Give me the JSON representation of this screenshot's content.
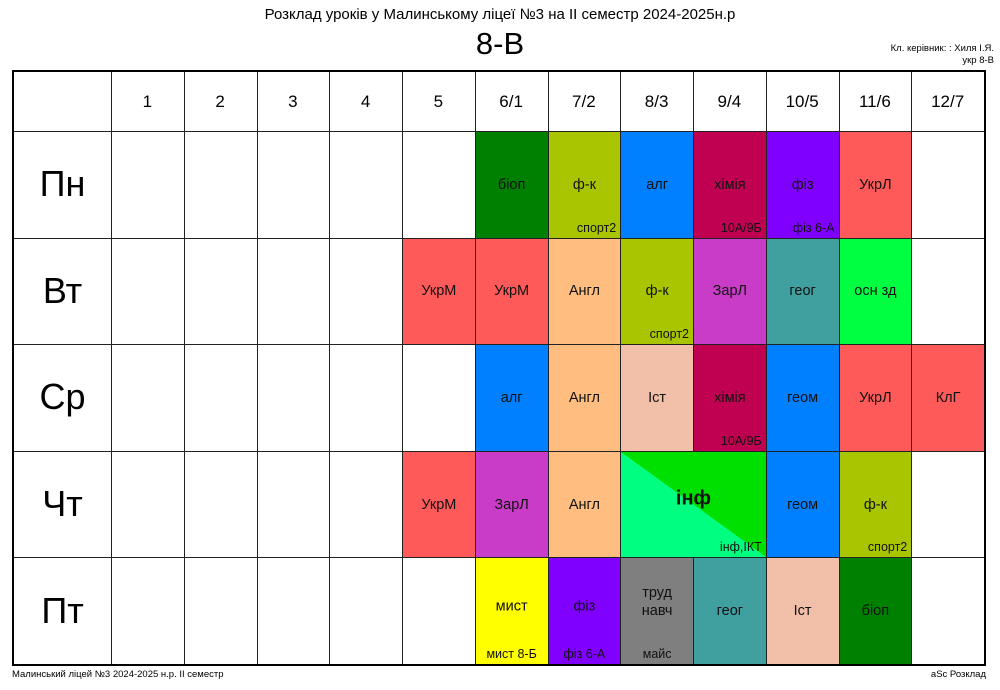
{
  "header": {
    "title": "Розклад уроків у Малинському ліцеї №3 на ІІ семестр 2024-2025н.р",
    "class_name": "8-В",
    "teacher_line": "Кл. керівник: : Хиля І.Я.",
    "room_line": "укр 8-В"
  },
  "periods": [
    "1",
    "2",
    "3",
    "4",
    "5",
    "6/1",
    "7/2",
    "8/3",
    "9/4",
    "10/5",
    "11/6",
    "12/7"
  ],
  "days": [
    "Пн",
    "Вт",
    "Ср",
    "Чт",
    "Пт"
  ],
  "lessons": [
    {
      "day": 0,
      "period": 5,
      "subject": "біоп",
      "sub": "",
      "color": "#008000"
    },
    {
      "day": 0,
      "period": 6,
      "subject": "ф-к",
      "sub": "спорт2",
      "color": "#a9c400"
    },
    {
      "day": 0,
      "period": 7,
      "subject": "алг",
      "sub": "",
      "color": "#0080ff"
    },
    {
      "day": 0,
      "period": 8,
      "subject": "хімія",
      "sub": "10А/9Б",
      "color": "#c00050"
    },
    {
      "day": 0,
      "period": 9,
      "subject": "фіз",
      "sub": "фіз 6-А",
      "color": "#8000ff"
    },
    {
      "day": 0,
      "period": 10,
      "subject": "УкрЛ",
      "sub": "",
      "color": "#ff5a5a"
    },
    {
      "day": 1,
      "period": 4,
      "subject": "УкрМ",
      "sub": "",
      "color": "#ff5a5a"
    },
    {
      "day": 1,
      "period": 5,
      "subject": "УкрМ",
      "sub": "",
      "color": "#ff5a5a"
    },
    {
      "day": 1,
      "period": 6,
      "subject": "Англ",
      "sub": "",
      "color": "#ffbe80"
    },
    {
      "day": 1,
      "period": 7,
      "subject": "ф-к",
      "sub": "спорт2",
      "color": "#a9c400"
    },
    {
      "day": 1,
      "period": 8,
      "subject": "ЗарЛ",
      "sub": "",
      "color": "#c83cc8"
    },
    {
      "day": 1,
      "period": 9,
      "subject": "геог",
      "sub": "",
      "color": "#40a0a0"
    },
    {
      "day": 1,
      "period": 10,
      "subject": "осн зд",
      "sub": "",
      "color": "#00ff40"
    },
    {
      "day": 2,
      "period": 5,
      "subject": "алг",
      "sub": "",
      "color": "#0080ff"
    },
    {
      "day": 2,
      "period": 6,
      "subject": "Англ",
      "sub": "",
      "color": "#ffbe80"
    },
    {
      "day": 2,
      "period": 7,
      "subject": "Іст",
      "sub": "",
      "color": "#f2c0a8"
    },
    {
      "day": 2,
      "period": 8,
      "subject": "хімія",
      "sub": "10А/9Б",
      "color": "#c00050"
    },
    {
      "day": 2,
      "period": 9,
      "subject": "геом",
      "sub": "",
      "color": "#0080ff"
    },
    {
      "day": 2,
      "period": 10,
      "subject": "УкрЛ",
      "sub": "",
      "color": "#ff5a5a"
    },
    {
      "day": 2,
      "period": 11,
      "subject": "КлГ",
      "sub": "",
      "color": "#ff5a5a"
    },
    {
      "day": 3,
      "period": 4,
      "subject": "УкрМ",
      "sub": "",
      "color": "#ff5a5a"
    },
    {
      "day": 3,
      "period": 5,
      "subject": "ЗарЛ",
      "sub": "",
      "color": "#c83cc8"
    },
    {
      "day": 3,
      "period": 6,
      "subject": "Англ",
      "sub": "",
      "color": "#ffbe80"
    },
    {
      "day": 3,
      "period": 7,
      "span": 2,
      "subject": "інф",
      "sub": "інф,ІКТ",
      "color": "#00ff80",
      "color2": "#00e000",
      "big": true
    },
    {
      "day": 3,
      "period": 9,
      "subject": "геом",
      "sub": "",
      "color": "#0080ff"
    },
    {
      "day": 3,
      "period": 10,
      "subject": "ф-к",
      "sub": "спорт2",
      "color": "#a9c400"
    },
    {
      "day": 4,
      "period": 5,
      "subject": "мист",
      "sub": "мист 8-Б",
      "color": "#ffff00",
      "subCenter": true
    },
    {
      "day": 4,
      "period": 6,
      "subject": "фіз",
      "sub": "фіз 6-А",
      "color": "#8000ff",
      "subCenter": true
    },
    {
      "day": 4,
      "period": 7,
      "subject": "труд\nнавч",
      "sub": "майс",
      "color": "#7f7f7f",
      "subCenter": true
    },
    {
      "day": 4,
      "period": 8,
      "subject": "геог",
      "sub": "",
      "color": "#40a0a0"
    },
    {
      "day": 4,
      "period": 9,
      "subject": "Іст",
      "sub": "",
      "color": "#f2c0a8"
    },
    {
      "day": 4,
      "period": 10,
      "subject": "біоп",
      "sub": "",
      "color": "#008000"
    }
  ],
  "footer": {
    "left": "Малинський ліцей №3  2024-2025 н.р. ІІ семестр",
    "right": "aSc Розклад"
  }
}
